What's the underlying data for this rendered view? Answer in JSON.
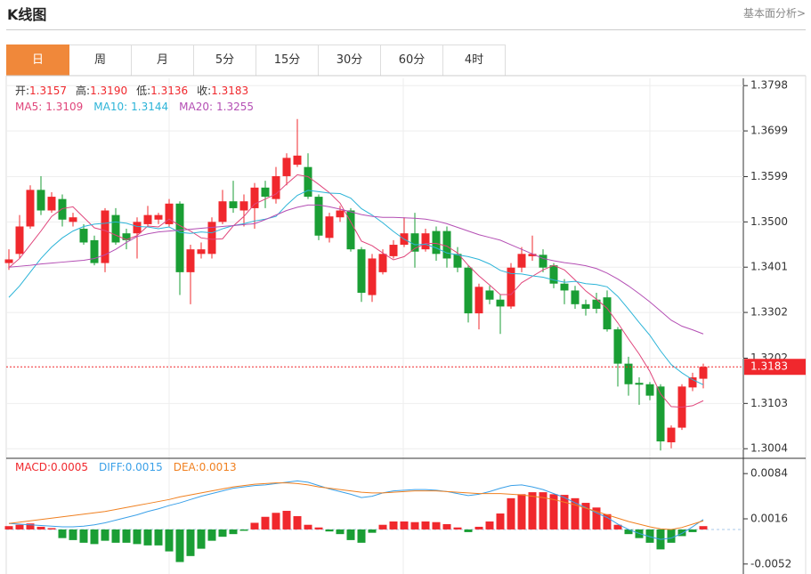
{
  "header": {
    "title": "K线图",
    "link": "基本面分析>"
  },
  "tabs": [
    "日",
    "周",
    "月",
    "5分",
    "15分",
    "30分",
    "60分",
    "4时"
  ],
  "active_tab": 0,
  "chart_data": [
    {
      "type": "candlestick",
      "readout": {
        "labels": [
          "开:",
          "高:",
          "低:",
          "收:"
        ],
        "values": [
          "1.3157",
          "1.3190",
          "1.3136",
          "1.3183"
        ]
      },
      "up_color": "#f0282d",
      "down_color": "#1a9e34",
      "open": [
        1.341,
        1.343,
        1.349,
        1.357,
        1.3525,
        1.355,
        1.35,
        1.3485,
        1.346,
        1.341,
        1.3515,
        1.3475,
        1.3475,
        1.3495,
        1.3505,
        1.3495,
        1.354,
        1.339,
        1.343,
        1.343,
        1.35,
        1.3545,
        1.3525,
        1.353,
        1.3575,
        1.355,
        1.36,
        1.3625,
        1.362,
        1.3555,
        1.3465,
        1.351,
        1.3525,
        1.344,
        1.334,
        1.339,
        1.3425,
        1.345,
        1.3475,
        1.344,
        1.348,
        1.348,
        1.343,
        1.34,
        1.33,
        1.335,
        1.333,
        1.3315,
        1.34,
        1.3425,
        1.3428,
        1.3405,
        1.3365,
        1.335,
        1.332,
        1.333,
        1.3335,
        1.3265,
        1.319,
        1.3148,
        1.3145,
        1.314,
        1.3018,
        1.305,
        1.3138,
        1.3157
      ],
      "high": [
        1.344,
        1.3515,
        1.358,
        1.36,
        1.3565,
        1.356,
        1.352,
        1.3495,
        1.347,
        1.353,
        1.353,
        1.3485,
        1.351,
        1.3535,
        1.352,
        1.355,
        1.3545,
        1.345,
        1.3455,
        1.351,
        1.357,
        1.359,
        1.356,
        1.3585,
        1.359,
        1.362,
        1.365,
        1.3725,
        1.365,
        1.356,
        1.352,
        1.3535,
        1.353,
        1.3445,
        1.343,
        1.344,
        1.346,
        1.351,
        1.352,
        1.3485,
        1.349,
        1.349,
        1.3445,
        1.3405,
        1.3365,
        1.336,
        1.334,
        1.341,
        1.3445,
        1.347,
        1.344,
        1.341,
        1.3375,
        1.336,
        1.333,
        1.3345,
        1.335,
        1.327,
        1.3205,
        1.316,
        1.315,
        1.3145,
        1.3055,
        1.3145,
        1.317,
        1.319
      ],
      "low": [
        1.3395,
        1.342,
        1.3485,
        1.3515,
        1.352,
        1.349,
        1.349,
        1.345,
        1.3405,
        1.339,
        1.345,
        1.344,
        1.342,
        1.349,
        1.3495,
        1.349,
        1.334,
        1.332,
        1.342,
        1.342,
        1.3495,
        1.352,
        1.349,
        1.3485,
        1.353,
        1.354,
        1.358,
        1.362,
        1.355,
        1.346,
        1.3455,
        1.35,
        1.3435,
        1.3325,
        1.3325,
        1.3385,
        1.342,
        1.3445,
        1.34,
        1.3435,
        1.3415,
        1.34,
        1.339,
        1.328,
        1.3265,
        1.332,
        1.3255,
        1.331,
        1.339,
        1.3415,
        1.339,
        1.3355,
        1.332,
        1.331,
        1.3295,
        1.33,
        1.326,
        1.314,
        1.312,
        1.31,
        1.311,
        1.3,
        1.3005,
        1.3045,
        1.313,
        1.3136
      ],
      "close": [
        1.3418,
        1.349,
        1.357,
        1.3525,
        1.3555,
        1.3505,
        1.351,
        1.3455,
        1.341,
        1.3525,
        1.3455,
        1.346,
        1.35,
        1.3515,
        1.3515,
        1.354,
        1.339,
        1.344,
        1.344,
        1.35,
        1.3545,
        1.353,
        1.3545,
        1.3575,
        1.3555,
        1.36,
        1.364,
        1.3645,
        1.3555,
        1.347,
        1.3512,
        1.3525,
        1.344,
        1.3345,
        1.342,
        1.343,
        1.345,
        1.3475,
        1.3435,
        1.3475,
        1.343,
        1.342,
        1.34,
        1.33,
        1.3358,
        1.333,
        1.3315,
        1.34,
        1.343,
        1.343,
        1.34,
        1.3365,
        1.335,
        1.332,
        1.331,
        1.331,
        1.3265,
        1.319,
        1.3145,
        1.3144,
        1.312,
        1.302,
        1.305,
        1.314,
        1.316,
        1.3183
      ],
      "series": [
        {
          "name": "MA5:",
          "color": "#e0457b",
          "values": [
            1.34,
            1.342,
            1.345,
            1.348,
            1.3512,
            1.3529,
            1.3533,
            1.351,
            1.3487,
            1.3481,
            1.3471,
            1.3461,
            1.347,
            1.3491,
            1.3489,
            1.3506,
            1.3492,
            1.348,
            1.3465,
            1.3462,
            1.3463,
            1.3491,
            1.3512,
            1.3539,
            1.355,
            1.3561,
            1.3583,
            1.3603,
            1.3599,
            1.3582,
            1.3564,
            1.3541,
            1.35,
            1.3458,
            1.3448,
            1.3432,
            1.3417,
            1.3424,
            1.3442,
            1.3453,
            1.3453,
            1.3447,
            1.3432,
            1.3405,
            1.3382,
            1.3362,
            1.3341,
            1.3341,
            1.3367,
            1.3381,
            1.3395,
            1.3405,
            1.3395,
            1.3373,
            1.3349,
            1.3331,
            1.3311,
            1.3279,
            1.3244,
            1.3211,
            1.3173,
            1.3124,
            1.3096,
            1.3095,
            1.3098,
            1.3109
          ]
        },
        {
          "name": "MA10:",
          "color": "#2cb4d8",
          "values": [
            1.3335,
            1.336,
            1.339,
            1.342,
            1.3445,
            1.3465,
            1.348,
            1.349,
            1.3495,
            1.3497,
            1.35,
            1.3497,
            1.349,
            1.3489,
            1.3485,
            1.3489,
            1.3477,
            1.3475,
            1.3478,
            1.3476,
            1.3485,
            1.3492,
            1.3496,
            1.3502,
            1.3506,
            1.3512,
            1.3537,
            1.3558,
            1.3569,
            1.3566,
            1.3563,
            1.3562,
            1.3552,
            1.3529,
            1.3515,
            1.3498,
            1.3479,
            1.3462,
            1.345,
            1.3451,
            1.3443,
            1.3432,
            1.3428,
            1.3424,
            1.3418,
            1.3408,
            1.3394,
            1.3387,
            1.3386,
            1.3382,
            1.3379,
            1.3373,
            1.3368,
            1.337,
            1.3365,
            1.3363,
            1.3358,
            1.3337,
            1.3309,
            1.328,
            1.3252,
            1.3218,
            1.3188,
            1.317,
            1.3155,
            1.3144
          ]
        },
        {
          "name": "MA20:",
          "color": "#b44fb4",
          "values": [
            1.3401,
            1.3403,
            1.3405,
            1.3408,
            1.341,
            1.3412,
            1.3414,
            1.3416,
            1.342,
            1.3428,
            1.344,
            1.3455,
            1.3468,
            1.3474,
            1.3478,
            1.348,
            1.3482,
            1.3484,
            1.3486,
            1.3488,
            1.349,
            1.3492,
            1.3494,
            1.3496,
            1.3505,
            1.3515,
            1.3525,
            1.3532,
            1.3537,
            1.3537,
            1.3533,
            1.3528,
            1.3522,
            1.3516,
            1.3512,
            1.351,
            1.351,
            1.3509,
            1.3508,
            1.3506,
            1.3502,
            1.3496,
            1.3488,
            1.348,
            1.3472,
            1.3466,
            1.346,
            1.345,
            1.344,
            1.343,
            1.342,
            1.3415,
            1.3411,
            1.3408,
            1.3404,
            1.3398,
            1.3388,
            1.3375,
            1.336,
            1.3343,
            1.3325,
            1.3305,
            1.3285,
            1.3272,
            1.3264,
            1.3255
          ]
        }
      ],
      "last_price": 1.3183,
      "ylim": [
        1.2983,
        1.3814
      ],
      "yticks": [
        1.3798,
        1.3699,
        1.3599,
        {
          "value": 1.35,
          "label": "1.3500"
        },
        1.3401,
        1.3302,
        1.3202,
        1.3103,
        1.3004
      ],
      "grid": true
    },
    {
      "type": "macd",
      "up_color": "#f0282d",
      "down_color": "#1a9e34",
      "histogram": {
        "name": "MACD:",
        "values": [
          0.0005,
          0.0007,
          0.0009,
          0.0004,
          0.0002,
          -0.0013,
          -0.0016,
          -0.002,
          -0.0022,
          -0.0017,
          -0.002,
          -0.002,
          -0.0022,
          -0.0024,
          -0.0024,
          -0.0033,
          -0.0049,
          -0.004,
          -0.0029,
          -0.0017,
          -0.0011,
          -0.0007,
          -0.0002,
          0.001,
          0.0019,
          0.0025,
          0.0028,
          0.002,
          0.0007,
          0.0003,
          -0.0003,
          -0.0007,
          -0.0016,
          -0.002,
          -0.0005,
          0.0007,
          0.0012,
          0.0012,
          0.0011,
          0.0012,
          0.0011,
          0.0008,
          0.0003,
          -0.0004,
          0.0004,
          0.0012,
          0.0024,
          0.0047,
          0.0053,
          0.0056,
          0.0056,
          0.0053,
          0.0052,
          0.0047,
          0.004,
          0.0033,
          0.0023,
          0.0007,
          -0.0007,
          -0.0013,
          -0.002,
          -0.003,
          -0.002,
          -0.001,
          -0.0004,
          0.0005
        ]
      },
      "series": [
        {
          "name": "DIFF:",
          "color": "#3aa0e8",
          "values": [
            0.0009,
            0.0008,
            0.0007,
            0.0006,
            0.0005,
            0.0004,
            0.0004,
            0.0005,
            0.0007,
            0.001,
            0.0014,
            0.0018,
            0.0022,
            0.0027,
            0.0031,
            0.0036,
            0.004,
            0.0045,
            0.005,
            0.0054,
            0.0058,
            0.0062,
            0.0064,
            0.0066,
            0.0067,
            0.0069,
            0.0071,
            0.0073,
            0.0071,
            0.0066,
            0.0061,
            0.0057,
            0.0053,
            0.0048,
            0.005,
            0.0055,
            0.0058,
            0.0059,
            0.006,
            0.006,
            0.0059,
            0.0057,
            0.0054,
            0.0051,
            0.0053,
            0.0057,
            0.0062,
            0.0066,
            0.0067,
            0.0064,
            0.006,
            0.0054,
            0.0048,
            0.004,
            0.0033,
            0.0025,
            0.0018,
            0.0008,
            0.0,
            -0.0006,
            -0.0011,
            -0.0015,
            -0.0013,
            -0.0006,
            0.0004,
            0.0015
          ]
        },
        {
          "name": "DEA:",
          "color": "#f08020",
          "values": [
            0.0009,
            0.0011,
            0.0013,
            0.0015,
            0.0017,
            0.0019,
            0.0021,
            0.0023,
            0.0025,
            0.0027,
            0.003,
            0.0033,
            0.0036,
            0.0039,
            0.0042,
            0.0045,
            0.0049,
            0.0052,
            0.0055,
            0.0058,
            0.0061,
            0.0064,
            0.0066,
            0.0068,
            0.0069,
            0.007,
            0.007,
            0.0069,
            0.0067,
            0.0064,
            0.0062,
            0.006,
            0.0058,
            0.0056,
            0.0055,
            0.0055,
            0.0056,
            0.0057,
            0.0058,
            0.0058,
            0.0058,
            0.0057,
            0.0056,
            0.0055,
            0.0054,
            0.0054,
            0.0054,
            0.0053,
            0.0052,
            0.005,
            0.0048,
            0.0045,
            0.0041,
            0.0037,
            0.0032,
            0.0027,
            0.0022,
            0.0017,
            0.0012,
            0.0008,
            0.0004,
            0.0001,
            0.0,
            0.0003,
            0.0008,
            0.0013
          ]
        }
      ],
      "ylim": [
        -0.0067,
        0.0107
      ],
      "yticks": [
        0.0084,
        0.0016,
        -0.0052
      ]
    }
  ]
}
